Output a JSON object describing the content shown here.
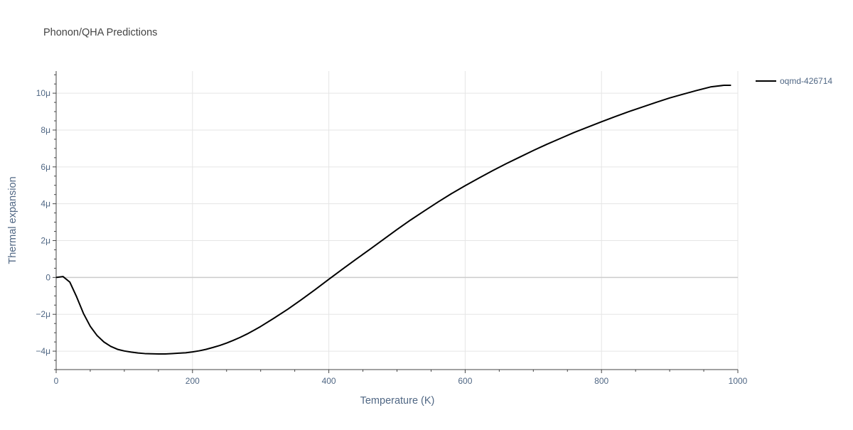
{
  "chart_data": {
    "type": "line",
    "title": "Phonon/QHA Predictions",
    "xlabel": "Temperature (K)",
    "ylabel": "Thermal expansion",
    "xlim": [
      0,
      1000
    ],
    "ylim": [
      -5e-06,
      1.12e-05
    ],
    "x_ticks": [
      0,
      200,
      400,
      600,
      800,
      1000
    ],
    "x_tick_labels": [
      "0",
      "200",
      "400",
      "600",
      "800",
      "1000"
    ],
    "y_ticks": [
      -4e-06,
      -2e-06,
      0,
      2e-06,
      4e-06,
      6e-06,
      8e-06,
      1e-05
    ],
    "y_tick_labels": [
      "−4μ",
      "−2μ",
      "0",
      "2μ",
      "4μ",
      "6μ",
      "8μ",
      "10μ"
    ],
    "grid": true,
    "legend_position": "top-right",
    "colors": {
      "series": "#000000",
      "grid": "#e5e5e5",
      "zero_line": "#cccccc",
      "axis_text": "#506784",
      "title": "#444444",
      "background": "#ffffff"
    },
    "series": [
      {
        "name": "oqmd-426714",
        "x": [
          0,
          10,
          20,
          30,
          40,
          50,
          60,
          70,
          80,
          90,
          100,
          110,
          120,
          130,
          140,
          150,
          160,
          170,
          180,
          190,
          200,
          210,
          220,
          230,
          240,
          250,
          260,
          270,
          280,
          290,
          300,
          320,
          340,
          360,
          380,
          400,
          420,
          440,
          460,
          480,
          500,
          520,
          540,
          560,
          580,
          600,
          620,
          640,
          660,
          680,
          700,
          720,
          740,
          760,
          780,
          800,
          820,
          840,
          860,
          880,
          900,
          920,
          940,
          960,
          980,
          990
        ],
        "y": [
          0,
          5e-08,
          -2.5e-07,
          -1.05e-06,
          -1.95e-06,
          -2.65e-06,
          -3.15e-06,
          -3.5e-06,
          -3.74e-06,
          -3.9e-06,
          -3.99e-06,
          -4.05e-06,
          -4.1e-06,
          -4.13e-06,
          -4.14e-06,
          -4.15e-06,
          -4.15e-06,
          -4.13e-06,
          -4.11e-06,
          -4.09e-06,
          -4.04e-06,
          -3.98e-06,
          -3.9e-06,
          -3.8e-06,
          -3.69e-06,
          -3.56e-06,
          -3.41e-06,
          -3.25e-06,
          -3.07e-06,
          -2.87e-06,
          -2.66e-06,
          -2.2e-06,
          -1.72e-06,
          -1.2e-06,
          -6.6e-07,
          -1e-07,
          4.5e-07,
          9.9e-07,
          1.52e-06,
          2.06e-06,
          2.6e-06,
          3.12e-06,
          3.61e-06,
          4.09e-06,
          4.55e-06,
          4.98e-06,
          5.39e-06,
          5.79e-06,
          6.17e-06,
          6.53e-06,
          6.89e-06,
          7.23e-06,
          7.55e-06,
          7.87e-06,
          8.16e-06,
          8.45e-06,
          8.73e-06,
          9e-06,
          9.25e-06,
          9.5e-06,
          9.74e-06,
          9.95e-06,
          1.015e-05,
          1.034e-05,
          1.043e-05,
          1.043e-05
        ]
      }
    ]
  }
}
